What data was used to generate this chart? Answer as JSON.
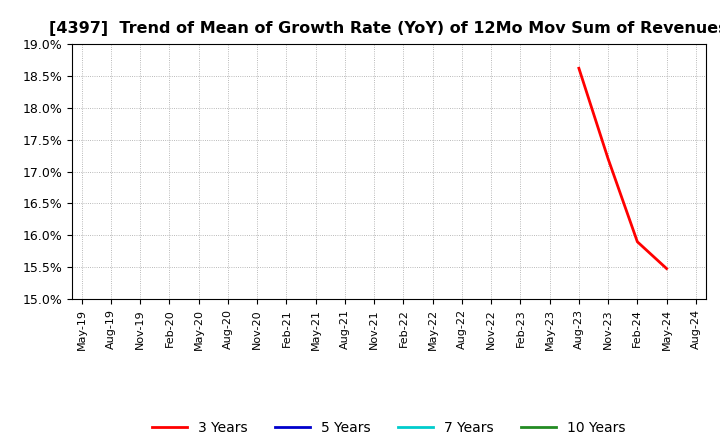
{
  "title": "[4397]  Trend of Mean of Growth Rate (YoY) of 12Mo Mov Sum of Revenues",
  "title_fontsize": 11.5,
  "ylim": [
    0.15,
    0.19
  ],
  "yticks": [
    0.15,
    0.155,
    0.16,
    0.165,
    0.17,
    0.175,
    0.18,
    0.185,
    0.19
  ],
  "ytick_labels": [
    "15.0%",
    "15.5%",
    "16.0%",
    "16.5%",
    "17.0%",
    "17.5%",
    "18.0%",
    "18.5%",
    "19.0%"
  ],
  "background_color": "#ffffff",
  "plot_background_color": "#ffffff",
  "grid_color": "#999999",
  "series": [
    {
      "label": "3 Years",
      "color": "#ff0000",
      "linewidth": 2.0,
      "data_x": [
        "Aug-23",
        "Nov-23",
        "Feb-24",
        "May-24"
      ],
      "data_y": [
        0.1862,
        0.172,
        0.159,
        0.1548
      ]
    },
    {
      "label": "5 Years",
      "color": "#0000cc",
      "linewidth": 2.0,
      "data_x": [],
      "data_y": []
    },
    {
      "label": "7 Years",
      "color": "#00cccc",
      "linewidth": 2.0,
      "data_x": [],
      "data_y": []
    },
    {
      "label": "10 Years",
      "color": "#228B22",
      "linewidth": 2.0,
      "data_x": [],
      "data_y": []
    }
  ],
  "xtick_labels": [
    "May-19",
    "Aug-19",
    "Nov-19",
    "Feb-20",
    "May-20",
    "Aug-20",
    "Nov-20",
    "Feb-21",
    "May-21",
    "Aug-21",
    "Nov-21",
    "Feb-22",
    "May-22",
    "Aug-22",
    "Nov-22",
    "Feb-23",
    "May-23",
    "Aug-23",
    "Nov-23",
    "Feb-24",
    "May-24",
    "Aug-24"
  ],
  "xtick_positions": [
    0,
    3,
    6,
    9,
    12,
    15,
    18,
    21,
    24,
    27,
    30,
    33,
    36,
    39,
    42,
    45,
    48,
    51,
    54,
    57,
    60,
    63
  ],
  "series_x_positions": {
    "Aug-23": 51,
    "Nov-23": 54,
    "Feb-24": 57,
    "May-24": 60
  },
  "total_months": 65,
  "legend_labels": [
    "3 Years",
    "5 Years",
    "7 Years",
    "10 Years"
  ],
  "legend_colors": [
    "#ff0000",
    "#0000cc",
    "#00cccc",
    "#228B22"
  ]
}
